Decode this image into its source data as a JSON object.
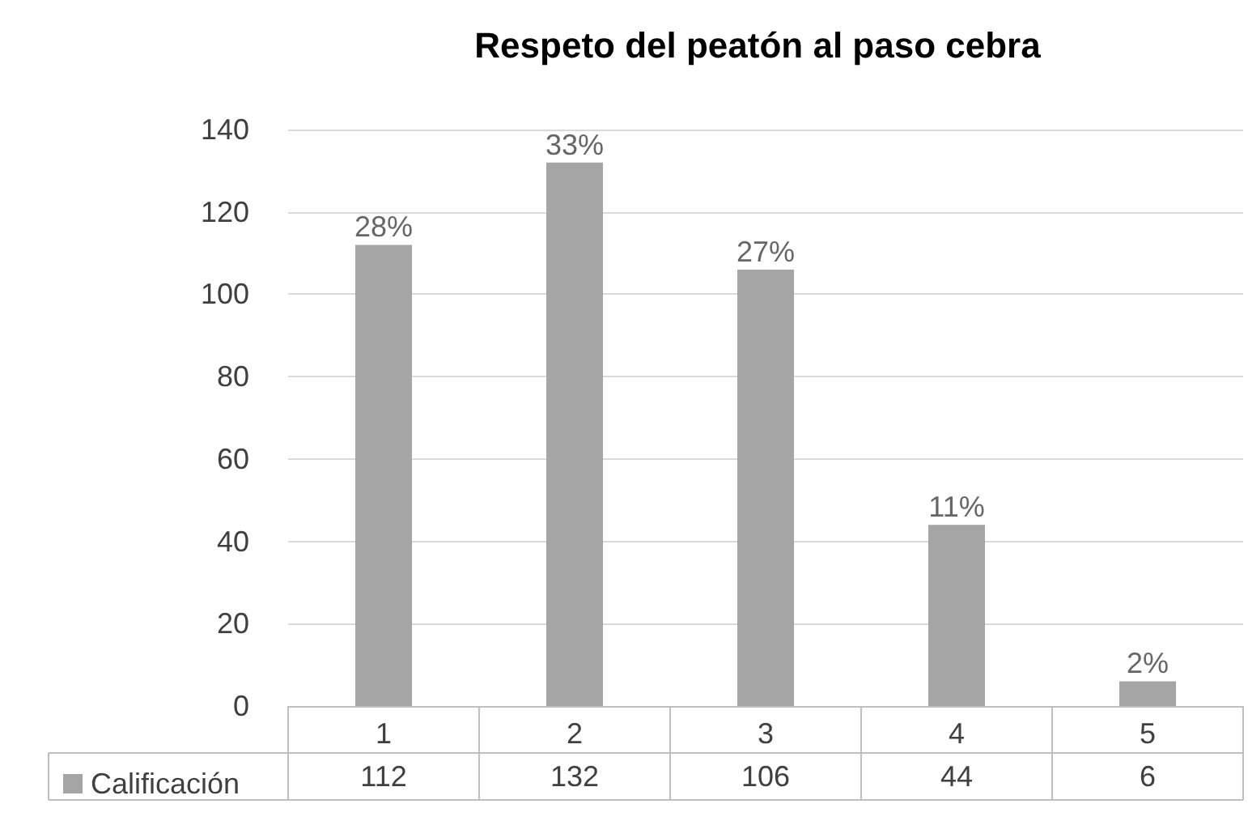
{
  "chart_data": {
    "type": "bar",
    "title": "Respeto del peatón al paso cebra",
    "categories": [
      "1",
      "2",
      "3",
      "4",
      "5"
    ],
    "series": [
      {
        "name": "Calificación",
        "color": "#a5a5a5",
        "values": [
          112,
          132,
          106,
          44,
          6
        ],
        "value_labels": [
          "112",
          "132",
          "106",
          "44",
          "6"
        ]
      }
    ],
    "annotations": [
      {
        "text": "28%",
        "x": "1",
        "y": 112
      },
      {
        "text": "33%",
        "x": "2",
        "y": 132
      },
      {
        "text": "27%",
        "x": "3",
        "y": 106
      },
      {
        "text": "11%",
        "x": "4",
        "y": 44
      },
      {
        "text": "2%",
        "x": "5",
        "y": 6
      }
    ],
    "ylim": [
      0,
      140
    ],
    "yticks": [
      0,
      20,
      40,
      60,
      80,
      100,
      120,
      140
    ],
    "grid": "y",
    "legend": "bottom left"
  }
}
